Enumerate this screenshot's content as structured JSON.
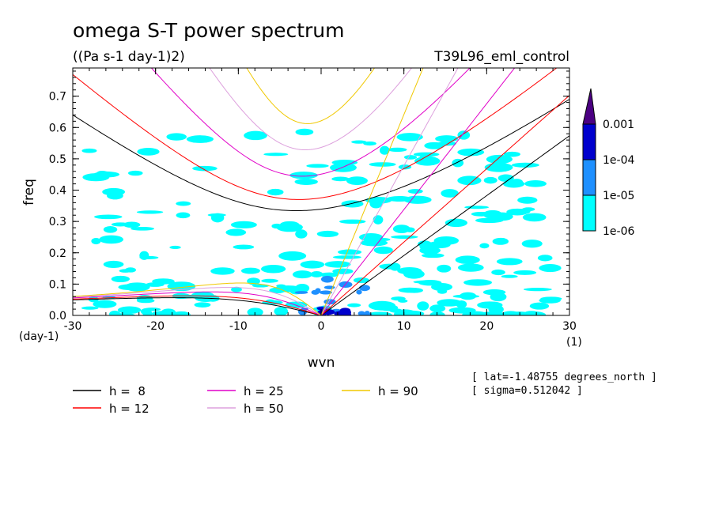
{
  "chart_data": {
    "type": "heatmap",
    "title": "omega S-T power spectrum",
    "subtitle": "((Pa s-1 day-1)2)",
    "run_label": "T39L96_eml_control",
    "xlabel": "wvn",
    "ylabel": "freq",
    "x_unit": "(1)",
    "y_unit": "(day-1)",
    "xlim": [
      -30,
      30
    ],
    "ylim": [
      0,
      0.79
    ],
    "xticks": [
      "-30",
      "-20",
      "-10",
      "0",
      "10",
      "20",
      "30"
    ],
    "yticks": [
      "0.0",
      "0.1",
      "0.2",
      "0.3",
      "0.4",
      "0.5",
      "0.6",
      "0.7"
    ],
    "colorbar": {
      "levels": [
        "1e-06",
        "1e-05",
        "1e-04",
        "0.001"
      ],
      "colors": [
        "#00ffff",
        "#1e90ff",
        "#0000cd",
        "#4b0082"
      ]
    },
    "shading_regions": [
      {
        "level": 0,
        "x": [
          -28,
          28
        ],
        "y": [
          0.0,
          0.6
        ],
        "density": "scattered patches, densest for freq below 0.3"
      },
      {
        "level": 1,
        "x": [
          -3,
          6
        ],
        "y": [
          0.0,
          0.12
        ],
        "density": "small patches near origin"
      },
      {
        "level": 2,
        "x": [
          0,
          4
        ],
        "y": [
          0.0,
          0.03
        ],
        "density": "tiny patches near origin"
      }
    ],
    "dispersion_curves": [
      {
        "name": "h =  8",
        "color": "#000000",
        "depth_m": 8
      },
      {
        "name": "h = 12",
        "color": "#ff0000",
        "depth_m": 12
      },
      {
        "name": "h = 25",
        "color": "#e100c8",
        "depth_m": 25
      },
      {
        "name": "h = 50",
        "color": "#dda0dd",
        "depth_m": 50
      },
      {
        "name": "h = 90",
        "color": "#f0c800",
        "depth_m": 90
      }
    ],
    "info_lines": [
      "[ lat=-1.48755 degrees_north ]",
      "[ sigma=0.512042 ]"
    ]
  }
}
